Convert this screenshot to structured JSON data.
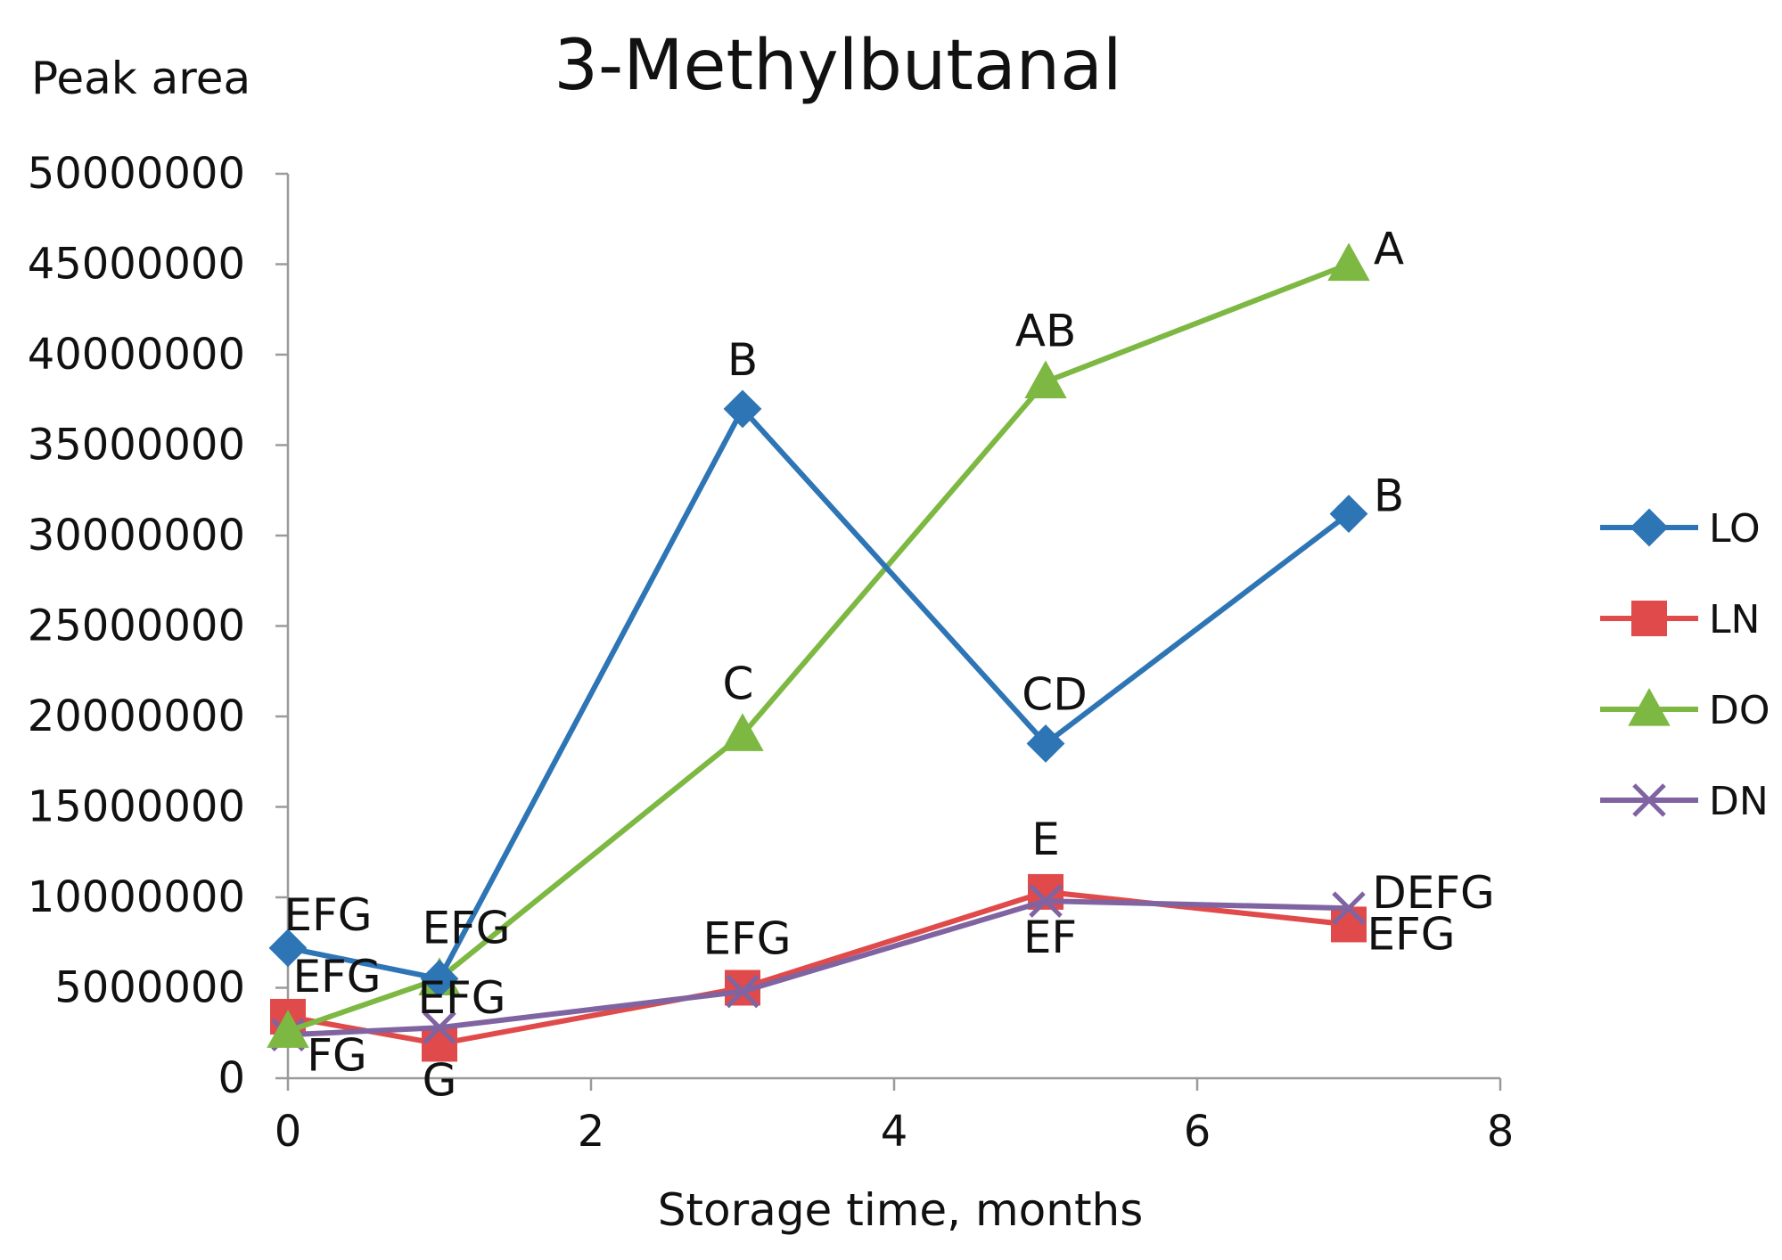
{
  "chart_data": {
    "type": "line",
    "title": "3-Methylbutanal",
    "ylabel": "Peak area",
    "xlabel": "Storage time, months",
    "xlim": [
      0,
      8
    ],
    "ylim": [
      0,
      50000000
    ],
    "xticks": [
      0,
      2,
      4,
      6,
      8
    ],
    "xtick_labels": [
      "0",
      "2",
      "4",
      "6",
      "8"
    ],
    "yticks": [
      0,
      5000000,
      10000000,
      15000000,
      20000000,
      25000000,
      30000000,
      35000000,
      40000000,
      45000000,
      50000000
    ],
    "ytick_labels": [
      "0",
      "5000000",
      "10000000",
      "15000000",
      "20000000",
      "25000000",
      "30000000",
      "35000000",
      "40000000",
      "45000000",
      "50000000"
    ],
    "grid": false,
    "legend_position": "right",
    "x": [
      0,
      1,
      3,
      5,
      7
    ],
    "series": [
      {
        "name": "LO",
        "color": "#2E75B6",
        "marker": "diamond",
        "values": [
          7200000,
          5500000,
          37000000,
          18500000,
          31200000
        ],
        "labels": [
          "EFG",
          "EFG",
          "B",
          "CD",
          "B"
        ]
      },
      {
        "name": "LN",
        "color": "#E04A4A",
        "marker": "square",
        "values": [
          3400000,
          1900000,
          5000000,
          10300000,
          8500000
        ],
        "labels": [
          "EFG",
          "G",
          "EFG",
          "E",
          "EFG"
        ]
      },
      {
        "name": "DO",
        "color": "#7DB842",
        "marker": "triangle",
        "values": [
          2600000,
          5500000,
          19000000,
          38500000,
          45000000
        ],
        "labels": [
          "",
          "",
          "C",
          "AB",
          "A"
        ]
      },
      {
        "name": "DN",
        "color": "#8064A2",
        "marker": "cross",
        "values": [
          2400000,
          2800000,
          4800000,
          9800000,
          9400000
        ],
        "labels": [
          "FG",
          "EFG",
          "",
          "EF",
          "DEFG"
        ]
      }
    ]
  }
}
